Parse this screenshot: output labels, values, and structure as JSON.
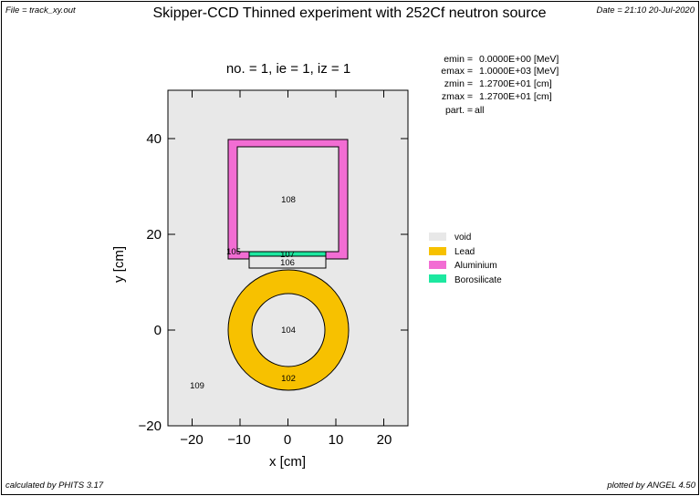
{
  "header": {
    "file_label": "File = track_xy.out",
    "title": "Skipper-CCD Thinned experiment with 252Cf neutron source",
    "date_label": "Date = 21:10 20-Jul-2020"
  },
  "plot": {
    "subtitle": "no. =  1,  ie =  1,  iz =  1",
    "xlabel": "x [cm]",
    "ylabel": "y [cm]",
    "x_ticks": [
      "−20",
      "−10",
      "0",
      "10",
      "20"
    ],
    "y_ticks": [
      "40",
      "20",
      "0",
      "−20"
    ]
  },
  "params": [
    {
      "key": "emin  =",
      "value": "0.0000E+00 [MeV]"
    },
    {
      "key": "emax  =",
      "value": "1.0000E+03 [MeV]"
    },
    {
      "key": "zmin  =",
      "value": "1.2700E+01 [cm]"
    },
    {
      "key": "zmax  =",
      "value": "1.2700E+01 [cm]"
    },
    {
      "key": "part. =",
      "value": "all"
    }
  ],
  "regions": {
    "r108": "108",
    "r105": "105",
    "r107": "107",
    "r106": "106",
    "r104": "104",
    "r102": "102",
    "r109": "109"
  },
  "legend": [
    {
      "label": "void",
      "color": "#e8e8e8"
    },
    {
      "label": "Lead",
      "color": "#f7c100"
    },
    {
      "label": "Aluminium",
      "color": "#f26dd3"
    },
    {
      "label": "Borosilicate",
      "color": "#1de8a0"
    }
  ],
  "footer": {
    "left": "calculated by PHITS 3.17",
    "right": "plotted by ANGEL 4.50"
  }
}
